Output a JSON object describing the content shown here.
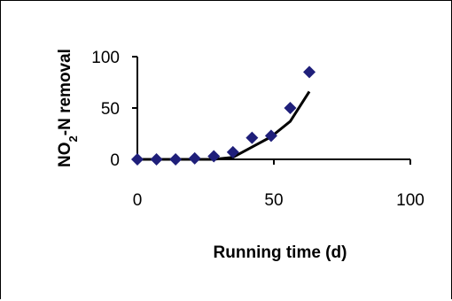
{
  "chart_data": {
    "type": "scatter",
    "title": "",
    "xlabel": "Running time (d)",
    "ylabel": {
      "prefix": "NO",
      "subscript": "2",
      "suffix": "-N removal"
    },
    "xlim": [
      0,
      100
    ],
    "ylim": [
      0,
      100
    ],
    "xticks": [
      "0",
      "50",
      "100"
    ],
    "yticks": [
      "0",
      "50",
      "100"
    ],
    "grid": false,
    "legend": "none",
    "series": [
      {
        "kind": "points",
        "marker": "diamond",
        "color": "#1f1f7a",
        "x": [
          0,
          7,
          14,
          21,
          28,
          35,
          42,
          49,
          56,
          63
        ],
        "y": [
          0,
          0,
          0,
          1,
          3,
          7,
          21,
          23,
          50,
          85
        ]
      },
      {
        "kind": "line",
        "color": "#000000",
        "x": [
          0,
          7,
          14,
          21,
          28,
          35,
          42,
          49,
          56,
          63
        ],
        "y": [
          0,
          0,
          0,
          0,
          0,
          2,
          12,
          22,
          37,
          66
        ]
      }
    ]
  },
  "colors": {
    "background": "#ffffff",
    "frame": "#000000",
    "marker": "#1f1f7a",
    "line": "#000000"
  }
}
